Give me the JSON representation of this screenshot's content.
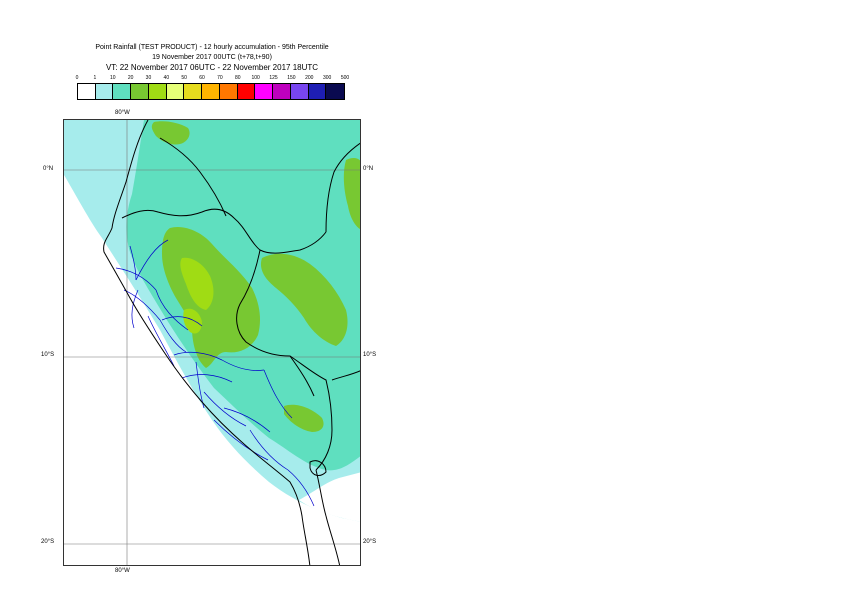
{
  "title": {
    "line1": "Point Rainfall (TEST PRODUCT) - 12 hourly accumulation - 95th Percentile",
    "line2": "19 November 2017 00UTC (t+78,t+90)",
    "line3": "VT: 22 November 2017 06UTC - 22 November 2017 18UTC"
  },
  "legend": {
    "tick_labels": [
      "0",
      "1",
      "10",
      "20",
      "30",
      "40",
      "50",
      "60",
      "70",
      "80",
      "100",
      "125",
      "150",
      "200",
      "300",
      "500"
    ],
    "colors": [
      "#ffffff",
      "#a6ecec",
      "#5fdfbf",
      "#78c832",
      "#a0dc14",
      "#e6ff78",
      "#e6dc1e",
      "#ffb400",
      "#ff7800",
      "#ff0000",
      "#ff00ff",
      "#be00be",
      "#7846f0",
      "#1e1eb4",
      "#0a0a50"
    ]
  },
  "axes": {
    "lon_top": "80°W",
    "lon_bottom": "80°W",
    "lat_left": [
      "0°N",
      "10°S",
      "20°S"
    ],
    "lat_right": [
      "0°N",
      "10°S",
      "20°S"
    ]
  },
  "map": {
    "colors": {
      "ocean_field": "#a6ecec",
      "dry_land": "#ffffff",
      "light_rain": "#5fdfbf",
      "moderate_rain": "#78c832",
      "heavier_rain": "#a0dc14",
      "country_border": "#000000",
      "region_border": "#0000cc",
      "grid": "#777777"
    }
  }
}
